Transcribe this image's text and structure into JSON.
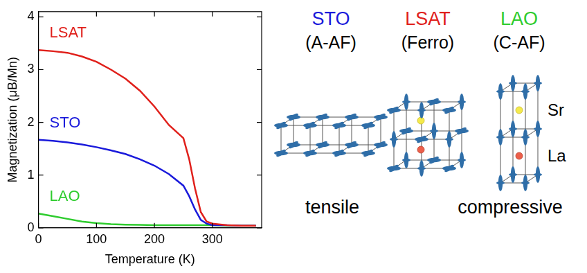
{
  "chart_data": {
    "type": "line",
    "x_label": "Temperature (K)",
    "y_label": "Magnetization (μB/Mn)",
    "x": [
      0,
      25,
      50,
      75,
      100,
      125,
      150,
      175,
      200,
      225,
      250,
      260,
      270,
      280,
      290,
      300,
      325,
      350,
      375
    ],
    "series": [
      {
        "name": "LSAT",
        "color": "#e0201b",
        "values": [
          3.37,
          3.35,
          3.32,
          3.25,
          3.15,
          3.0,
          2.83,
          2.6,
          2.3,
          1.95,
          1.7,
          1.3,
          0.75,
          0.3,
          0.12,
          0.08,
          0.05,
          0.04,
          0.04
        ]
      },
      {
        "name": "STO",
        "color": "#1a1adb",
        "values": [
          1.67,
          1.65,
          1.62,
          1.58,
          1.53,
          1.47,
          1.4,
          1.3,
          1.18,
          1.02,
          0.8,
          0.6,
          0.35,
          0.15,
          0.08,
          0.05,
          0.05,
          0.04,
          0.04
        ]
      },
      {
        "name": "LAO",
        "color": "#2ecc2e",
        "values": [
          0.27,
          0.22,
          0.17,
          0.12,
          0.09,
          0.07,
          0.06,
          0.055,
          0.05,
          0.05,
          0.05,
          0.05,
          0.05,
          0.05,
          0.05,
          0.05,
          0.045,
          0.04,
          0.04
        ]
      }
    ],
    "xlim": [
      0,
      385
    ],
    "ylim": [
      0,
      4.1
    ],
    "xticks": [
      0,
      100,
      200,
      300
    ],
    "yticks": [
      0,
      1,
      2,
      3,
      4
    ],
    "grid": false
  },
  "diagram": {
    "panels": [
      {
        "name": "STO",
        "color": "#1a1adb",
        "order": "(A-AF)"
      },
      {
        "name": "LSAT",
        "color": "#e0201b",
        "order": "(Ferro)"
      },
      {
        "name": "LAO",
        "color": "#2ecc2e",
        "order": "(C-AF)"
      }
    ],
    "site_labels": [
      "Sr",
      "La"
    ],
    "strain": [
      "tensile",
      "compressive"
    ]
  }
}
